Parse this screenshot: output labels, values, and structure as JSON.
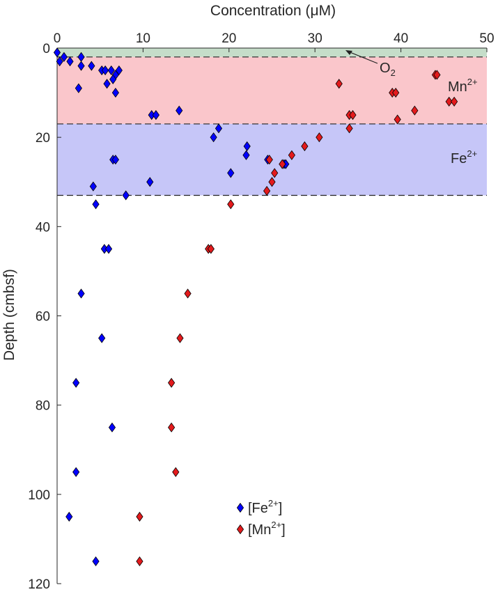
{
  "chart_data": {
    "type": "scatter",
    "title": "",
    "xlabel": "Concentration (μM)",
    "ylabel": "Depth (cmbsf)",
    "xlim": [
      0,
      50
    ],
    "ylim": [
      0,
      120
    ],
    "x_axis_position": "top",
    "y_axis_reversed": true,
    "xticks": [
      0,
      10,
      20,
      30,
      40,
      50
    ],
    "yticks": [
      0,
      20,
      40,
      60,
      80,
      100,
      120
    ],
    "grid": false,
    "legend_position": "bottom-center",
    "zones": [
      {
        "label_main": "O",
        "label_sup": "",
        "label_sub": "2",
        "depth_range": [
          0,
          2
        ],
        "color": "#c5ddc9",
        "annotation_arrow": true
      },
      {
        "label_main": "Mn",
        "label_sup": "2+",
        "label_sub": "",
        "depth_range": [
          2,
          17
        ],
        "color": "#fac6cb",
        "annotation_arrow": false
      },
      {
        "label_main": "Fe",
        "label_sup": "2+",
        "label_sub": "",
        "depth_range": [
          17,
          33
        ],
        "color": "#c6c6f8",
        "annotation_arrow": false
      }
    ],
    "boundary_depths": [
      2,
      17,
      33
    ],
    "series": [
      {
        "name_main": "[Fe",
        "name_sup": "2+",
        "name_end": "]",
        "color": "#0000ff",
        "points": [
          [
            0,
            1
          ],
          [
            0.8,
            2
          ],
          [
            0.3,
            3
          ],
          [
            1.5,
            3
          ],
          [
            2.8,
            2
          ],
          [
            2.8,
            4
          ],
          [
            4,
            4
          ],
          [
            5.2,
            5
          ],
          [
            5.6,
            5
          ],
          [
            6.3,
            5
          ],
          [
            6.8,
            6
          ],
          [
            7.2,
            5
          ],
          [
            6.5,
            7
          ],
          [
            5.8,
            8
          ],
          [
            2.5,
            9
          ],
          [
            6.8,
            10
          ],
          [
            11,
            15
          ],
          [
            11.5,
            15
          ],
          [
            14.2,
            14
          ],
          [
            18.8,
            18
          ],
          [
            18.2,
            20
          ],
          [
            22.1,
            22
          ],
          [
            22,
            24
          ],
          [
            24.5,
            25
          ],
          [
            6.5,
            25
          ],
          [
            6.8,
            25
          ],
          [
            26.4,
            26
          ],
          [
            26.6,
            26
          ],
          [
            20.2,
            28
          ],
          [
            10.8,
            30
          ],
          [
            4.2,
            31
          ],
          [
            8,
            33
          ],
          [
            4.5,
            35
          ],
          [
            5.5,
            45
          ],
          [
            6,
            45
          ],
          [
            2.8,
            55
          ],
          [
            5.2,
            65
          ],
          [
            2.2,
            75
          ],
          [
            6.4,
            85
          ],
          [
            2.2,
            95
          ],
          [
            1.4,
            105
          ],
          [
            4.5,
            115
          ]
        ]
      },
      {
        "name_main": "[Mn",
        "name_sup": "2+",
        "name_end": "]",
        "color": "#e31a1c",
        "points": [
          [
            44,
            6
          ],
          [
            44.2,
            6
          ],
          [
            32.8,
            8
          ],
          [
            39,
            10
          ],
          [
            39.4,
            10
          ],
          [
            45.6,
            12
          ],
          [
            46.2,
            12
          ],
          [
            41.6,
            14
          ],
          [
            34,
            15
          ],
          [
            34.4,
            15
          ],
          [
            39.6,
            16
          ],
          [
            34,
            18
          ],
          [
            30.5,
            20
          ],
          [
            28.8,
            22
          ],
          [
            27.3,
            24
          ],
          [
            24.7,
            25
          ],
          [
            26.2,
            26
          ],
          [
            25.3,
            28
          ],
          [
            25,
            30
          ],
          [
            24.4,
            32
          ],
          [
            20.2,
            35
          ],
          [
            17.6,
            45
          ],
          [
            17.9,
            45
          ],
          [
            15.2,
            55
          ],
          [
            14.3,
            65
          ],
          [
            13.3,
            75
          ],
          [
            13.3,
            85
          ],
          [
            13.8,
            95
          ],
          [
            9.6,
            105
          ],
          [
            9.6,
            115
          ]
        ]
      }
    ]
  }
}
